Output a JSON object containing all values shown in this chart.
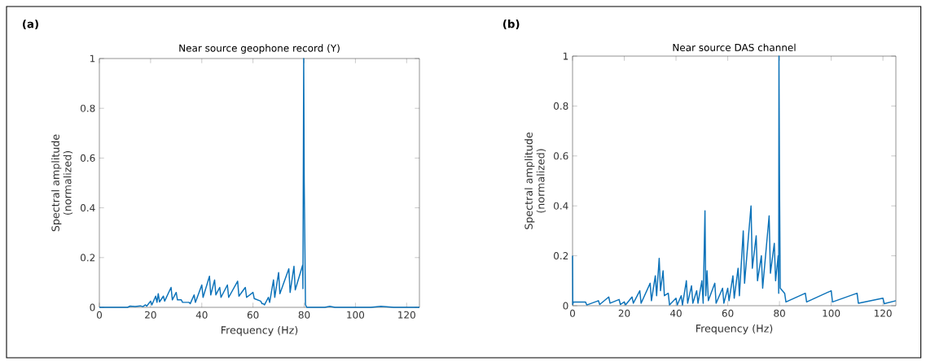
{
  "chart_data": [
    {
      "type": "line",
      "title": "Near source geophone record (Y)",
      "xlabel": "Frequency (Hz)",
      "ylabel": "Spectral amplitude\n(normalized)",
      "annotations": [
        "(a)"
      ],
      "xlim": [
        0,
        125
      ],
      "ylim": [
        0,
        1
      ],
      "xticks": [
        0,
        20,
        40,
        60,
        80,
        100,
        120
      ],
      "yticks": [
        0,
        0.2,
        0.4,
        0.6,
        0.8,
        1
      ],
      "grid": false,
      "marker": "none",
      "line_style": "solid",
      "series": [
        {
          "color": "#0b72b9",
          "x": [
            0,
            11,
            12,
            14,
            16,
            17,
            18,
            18.5,
            20,
            20.5,
            22,
            22.5,
            23,
            23.5,
            25,
            25.5,
            28,
            28.5,
            30,
            30.5,
            32,
            32.5,
            35,
            35.5,
            37,
            37.5,
            40,
            40.5,
            43,
            43.5,
            45,
            45.5,
            47,
            47.5,
            50,
            50.5,
            54,
            54.5,
            57,
            57.5,
            60,
            60.5,
            63,
            63.5,
            64,
            64.5,
            66,
            66.5,
            68,
            68.5,
            70,
            70.5,
            74,
            74.5,
            76,
            76.5,
            79.4,
            79.5,
            79.8,
            80,
            80.5,
            81,
            88,
            90,
            92,
            106,
            110,
            115,
            125
          ],
          "values": [
            0,
            0,
            0.005,
            0.003,
            0.006,
            0.003,
            0.01,
            0.005,
            0.025,
            0.01,
            0.045,
            0.02,
            0.055,
            0.022,
            0.045,
            0.025,
            0.08,
            0.03,
            0.06,
            0.03,
            0.03,
            0.02,
            0.02,
            0.015,
            0.05,
            0.02,
            0.09,
            0.04,
            0.125,
            0.05,
            0.11,
            0.05,
            0.08,
            0.04,
            0.09,
            0.04,
            0.105,
            0.045,
            0.08,
            0.04,
            0.06,
            0.035,
            0.025,
            0.015,
            0.015,
            0.01,
            0.04,
            0.02,
            0.11,
            0.04,
            0.14,
            0.055,
            0.155,
            0.06,
            0.165,
            0.07,
            0.17,
            0.075,
            1,
            0.5,
            0.01,
            0,
            0,
            0.004,
            0,
            0,
            0.004,
            0,
            0
          ]
        }
      ]
    },
    {
      "type": "line",
      "title": "Near source DAS channel",
      "xlabel": "Frequency (Hz)",
      "ylabel": "Spectral amplitude\n(normalized)",
      "annotations": [
        "(b)"
      ],
      "xlim": [
        0,
        125
      ],
      "ylim": [
        0,
        1
      ],
      "xticks": [
        0,
        20,
        40,
        60,
        80,
        100,
        120
      ],
      "yticks": [
        0,
        0.2,
        0.4,
        0.6,
        0.8,
        1
      ],
      "grid": false,
      "marker": "none",
      "line_style": "solid",
      "series": [
        {
          "color": "#0b72b9",
          "x": [
            0,
            0.1,
            0.3,
            5,
            5.5,
            10,
            10.5,
            14,
            14.5,
            18,
            18.5,
            20,
            20.5,
            23,
            23.5,
            26,
            26.5,
            30,
            30.5,
            32,
            32.5,
            33.5,
            34,
            35,
            35.5,
            37,
            37.5,
            40,
            40.5,
            42,
            42.5,
            44,
            44.5,
            46,
            46.5,
            48,
            48.5,
            50,
            50.5,
            51.2,
            51.5,
            52,
            52.5,
            55,
            55.5,
            58,
            58.5,
            60,
            60.5,
            62,
            62.5,
            64,
            64.5,
            66,
            66.5,
            69,
            69.5,
            71,
            71.5,
            73,
            73.5,
            76,
            76.5,
            78,
            78.5,
            79.5,
            79.7,
            79.8,
            80,
            80.3,
            82,
            82.5,
            90,
            90.5,
            100,
            100.5,
            110,
            110.5,
            120,
            120.5,
            125
          ],
          "values": [
            0.2,
            0.005,
            0.015,
            0.015,
            0.003,
            0.02,
            0.005,
            0.035,
            0.01,
            0.025,
            0.005,
            0.015,
            0.003,
            0.035,
            0.01,
            0.06,
            0.01,
            0.09,
            0.02,
            0.12,
            0.04,
            0.19,
            0.06,
            0.14,
            0.04,
            0.05,
            0.003,
            0.03,
            0.003,
            0.04,
            0.003,
            0.1,
            0.01,
            0.08,
            0.01,
            0.06,
            0.01,
            0.1,
            0.01,
            0.38,
            0.04,
            0.14,
            0.02,
            0.09,
            0.01,
            0.07,
            0.01,
            0.07,
            0.02,
            0.12,
            0.03,
            0.15,
            0.04,
            0.3,
            0.09,
            0.4,
            0.15,
            0.28,
            0.1,
            0.2,
            0.07,
            0.36,
            0.13,
            0.25,
            0.1,
            0.2,
            0.05,
            1,
            0.52,
            0.07,
            0.05,
            0.015,
            0.05,
            0.015,
            0.06,
            0.015,
            0.05,
            0.01,
            0.03,
            0.008,
            0.02
          ]
        }
      ]
    }
  ]
}
